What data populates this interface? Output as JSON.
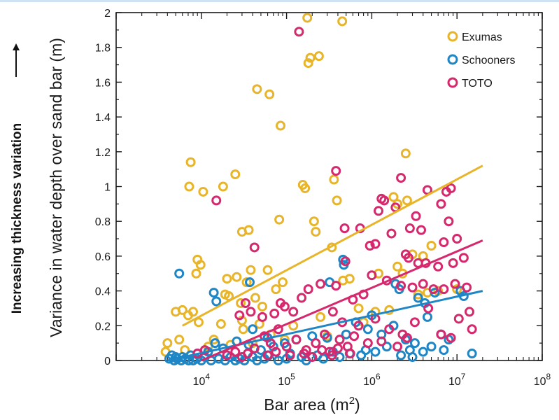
{
  "side_annotation": "Increasing thickness variation",
  "chart_data": {
    "type": "scatter",
    "title": "",
    "xlabel": "Bar area (m²)",
    "xlabel_main": "Bar area (m",
    "xlabel_sup": "2",
    "xlabel_close": ")",
    "ylabel": "Variance in water depth over sand bar (m)",
    "x_scale": "log",
    "xlim": [
      1000,
      100000000
    ],
    "ylim": [
      0,
      2
    ],
    "x_ticks": [
      {
        "value": 10000,
        "base": "10",
        "exp": "4"
      },
      {
        "value": 100000,
        "base": "10",
        "exp": "5"
      },
      {
        "value": 1000000,
        "base": "10",
        "exp": "6"
      },
      {
        "value": 10000000,
        "base": "10",
        "exp": "7"
      },
      {
        "value": 100000000,
        "base": "10",
        "exp": "8"
      }
    ],
    "y_ticks": [
      "0",
      "0.2",
      "0.4",
      "0.6",
      "0.8",
      "1",
      "1.2",
      "1.4",
      "1.6",
      "1.8",
      "2"
    ],
    "y_tick_values": [
      0,
      0.2,
      0.4,
      0.6,
      0.8,
      1.0,
      1.2,
      1.4,
      1.6,
      1.8,
      2.0
    ],
    "grid": false,
    "legend_position": "top-right",
    "marker": "open-circle",
    "series": [
      {
        "name": "Exumas",
        "color": "#e8b52a",
        "trend": {
          "x": [
            6000,
            20000000
          ],
          "y": [
            0.2,
            1.12
          ]
        },
        "points": [
          [
            175000,
            1.97
          ],
          [
            450000,
            1.95
          ],
          [
            190000,
            1.74
          ],
          [
            240000,
            1.75
          ],
          [
            180000,
            1.71
          ],
          [
            45000,
            1.56
          ],
          [
            63000,
            1.53
          ],
          [
            85000,
            1.35
          ],
          [
            2500000,
            1.19
          ],
          [
            7500,
            1.14
          ],
          [
            25000,
            1.07
          ],
          [
            360000,
            1.04
          ],
          [
            7200,
            1.0
          ],
          [
            10500,
            0.97
          ],
          [
            18000,
            1.0
          ],
          [
            155000,
            1.01
          ],
          [
            165000,
            0.99
          ],
          [
            1800000,
            0.94
          ],
          [
            2000000,
            0.9
          ],
          [
            2600000,
            0.92
          ],
          [
            390000,
            0.92
          ],
          [
            82000,
            0.81
          ],
          [
            210000,
            0.8
          ],
          [
            220000,
            0.74
          ],
          [
            30000,
            0.74
          ],
          [
            36000,
            0.75
          ],
          [
            340000,
            0.65
          ],
          [
            3000000,
            0.61
          ],
          [
            4000000,
            0.6
          ],
          [
            5000000,
            0.66
          ],
          [
            9000,
            0.58
          ],
          [
            9800,
            0.55
          ],
          [
            8700,
            0.5
          ],
          [
            60000,
            0.52
          ],
          [
            38000,
            0.52
          ],
          [
            26000,
            0.48
          ],
          [
            20000,
            0.47
          ],
          [
            34000,
            0.45
          ],
          [
            75000,
            0.41
          ],
          [
            43000,
            0.36
          ],
          [
            19000,
            0.38
          ],
          [
            21000,
            0.37
          ],
          [
            29000,
            0.33
          ],
          [
            90000,
            0.45
          ],
          [
            6000,
            0.29
          ],
          [
            5000,
            0.28
          ],
          [
            8000,
            0.28
          ],
          [
            7000,
            0.26
          ],
          [
            9300,
            0.22
          ],
          [
            17000,
            0.21
          ],
          [
            48000,
            0.21
          ],
          [
            52000,
            0.31
          ],
          [
            30000,
            0.23
          ],
          [
            2000000,
            0.54
          ],
          [
            1600000,
            0.29
          ],
          [
            460000,
            0.46
          ],
          [
            550000,
            0.47
          ],
          [
            1100000,
            0.28
          ],
          [
            3500000,
            0.38
          ],
          [
            4500000,
            0.39
          ],
          [
            6000000,
            0.4
          ],
          [
            10000000,
            0.41
          ],
          [
            4000,
            0.1
          ],
          [
            5500,
            0.12
          ],
          [
            12000,
            0.08
          ],
          [
            22000,
            0.09
          ],
          [
            31000,
            0.18
          ],
          [
            65000,
            0.15
          ],
          [
            120000,
            0.2
          ],
          [
            250000,
            0.25
          ],
          [
            700000,
            0.3
          ],
          [
            1200000,
            0.5
          ],
          [
            2300000,
            0.5
          ],
          [
            3800,
            0.05
          ],
          [
            6400,
            0.06
          ],
          [
            14000,
            0.12
          ],
          [
            40000,
            0.1
          ],
          [
            95000,
            0.12
          ],
          [
            300000,
            0.14
          ],
          [
            800000,
            0.22
          ]
        ]
      },
      {
        "name": "Schooners",
        "color": "#1f86c6",
        "trend": {
          "x": [
            4000,
            20000000
          ],
          "y": [
            0.0,
            0.4
          ]
        },
        "points": [
          [
            5500,
            0.5
          ],
          [
            14000,
            0.39
          ],
          [
            15000,
            0.34
          ],
          [
            37000,
            0.45
          ],
          [
            320000,
            0.45
          ],
          [
            460000,
            0.58
          ],
          [
            470000,
            0.55
          ],
          [
            1900000,
            0.44
          ],
          [
            2100000,
            0.41
          ],
          [
            3500000,
            0.36
          ],
          [
            4200000,
            0.33
          ],
          [
            5500000,
            0.39
          ],
          [
            11000000,
            0.4
          ],
          [
            12000000,
            0.37
          ],
          [
            1000000,
            0.26
          ],
          [
            650000,
            0.22
          ],
          [
            900000,
            0.18
          ],
          [
            500000,
            0.15
          ],
          [
            300000,
            0.13
          ],
          [
            200000,
            0.14
          ],
          [
            1300000,
            0.15
          ],
          [
            1800000,
            0.2
          ],
          [
            2500000,
            0.12
          ],
          [
            3200000,
            0.1
          ],
          [
            4500000,
            0.25
          ],
          [
            6500000,
            0.15
          ],
          [
            8000000,
            0.12
          ],
          [
            15000000,
            0.04
          ],
          [
            130000,
            0.12
          ],
          [
            95000,
            0.1
          ],
          [
            70000,
            0.08
          ],
          [
            50000,
            0.06
          ],
          [
            36000,
            0.09
          ],
          [
            26000,
            0.11
          ],
          [
            18000,
            0.07
          ],
          [
            14500,
            0.1
          ],
          [
            12000,
            0.05
          ],
          [
            9000,
            0.04
          ],
          [
            7500,
            0.03
          ],
          [
            6000,
            0.02
          ],
          [
            5000,
            0.02
          ],
          [
            4200,
            0.01
          ],
          [
            4500,
            0.03
          ],
          [
            4800,
            0.0
          ],
          [
            5200,
            0.01
          ],
          [
            5800,
            0.0
          ],
          [
            6500,
            0.01
          ],
          [
            7100,
            0.0
          ],
          [
            8000,
            0.0
          ],
          [
            8800,
            0.01
          ],
          [
            10000,
            0.0
          ],
          [
            11000,
            0.02
          ],
          [
            13000,
            0.0
          ],
          [
            16000,
            0.01
          ],
          [
            19000,
            0.0
          ],
          [
            22000,
            0.02
          ],
          [
            25000,
            0.0
          ],
          [
            28000,
            0.01
          ],
          [
            32000,
            0.0
          ],
          [
            40000,
            0.02
          ],
          [
            45000,
            0.0
          ],
          [
            55000,
            0.01
          ],
          [
            62000,
            0.03
          ],
          [
            80000,
            0.0
          ],
          [
            100000,
            0.01
          ],
          [
            110000,
            0.04
          ],
          [
            150000,
            0.02
          ],
          [
            170000,
            0.0
          ],
          [
            230000,
            0.03
          ],
          [
            270000,
            0.01
          ],
          [
            350000,
            0.05
          ],
          [
            420000,
            0.02
          ],
          [
            550000,
            0.04
          ],
          [
            750000,
            0.03
          ],
          [
            850000,
            0.06
          ],
          [
            1100000,
            0.05
          ],
          [
            1500000,
            0.08
          ],
          [
            2200000,
            0.03
          ],
          [
            2800000,
            0.06
          ],
          [
            4000000,
            0.05
          ],
          [
            5000000,
            0.08
          ],
          [
            7000000,
            0.06
          ],
          [
            3000000,
            0.02
          ],
          [
            60000,
            0.13
          ],
          [
            40000,
            0.18
          ]
        ]
      },
      {
        "name": "TOTO",
        "color": "#d6286d",
        "trend": {
          "x": [
            10000,
            20000000
          ],
          "y": [
            0.0,
            0.69
          ]
        },
        "points": [
          [
            140000,
            1.89
          ],
          [
            15000,
            0.92
          ],
          [
            380000,
            1.09
          ],
          [
            2200000,
            1.05
          ],
          [
            1300000,
            0.93
          ],
          [
            1400000,
            0.92
          ],
          [
            1900000,
            0.88
          ],
          [
            1200000,
            0.86
          ],
          [
            4500000,
            0.98
          ],
          [
            7500000,
            0.97
          ],
          [
            8500000,
            0.99
          ],
          [
            6500000,
            0.9
          ],
          [
            480000,
            0.76
          ],
          [
            730000,
            0.76
          ],
          [
            1700000,
            0.73
          ],
          [
            2800000,
            0.76
          ],
          [
            3800000,
            0.75
          ],
          [
            8000000,
            0.8
          ],
          [
            3300000,
            0.83
          ],
          [
            42000,
            0.65
          ],
          [
            950000,
            0.66
          ],
          [
            1100000,
            0.67
          ],
          [
            2500000,
            0.61
          ],
          [
            7000000,
            0.68
          ],
          [
            10000000,
            0.7
          ],
          [
            2700000,
            0.59
          ],
          [
            3500000,
            0.56
          ],
          [
            4300000,
            0.56
          ],
          [
            6000000,
            0.54
          ],
          [
            9000000,
            0.56
          ],
          [
            12000000,
            0.59
          ],
          [
            490000,
            0.57
          ],
          [
            1000000,
            0.49
          ],
          [
            1500000,
            0.46
          ],
          [
            2200000,
            0.43
          ],
          [
            3000000,
            0.42
          ],
          [
            4000000,
            0.44
          ],
          [
            5300000,
            0.41
          ],
          [
            7000000,
            0.41
          ],
          [
            9500000,
            0.44
          ],
          [
            13000000,
            0.42
          ],
          [
            14000000,
            0.28
          ],
          [
            800000,
            0.38
          ],
          [
            600000,
            0.35
          ],
          [
            380000,
            0.43
          ],
          [
            250000,
            0.44
          ],
          [
            180000,
            0.41
          ],
          [
            150000,
            0.36
          ],
          [
            120000,
            0.28
          ],
          [
            95000,
            0.31
          ],
          [
            85000,
            0.33
          ],
          [
            72000,
            0.27
          ],
          [
            52000,
            0.25
          ],
          [
            38000,
            0.28
          ],
          [
            33000,
            0.33
          ],
          [
            28000,
            0.26
          ],
          [
            350000,
            0.28
          ],
          [
            450000,
            0.22
          ],
          [
            700000,
            0.2
          ],
          [
            1100000,
            0.24
          ],
          [
            1600000,
            0.18
          ],
          [
            2300000,
            0.15
          ],
          [
            3200000,
            0.22
          ],
          [
            4600000,
            0.3
          ],
          [
            6500000,
            0.15
          ],
          [
            8500000,
            0.13
          ],
          [
            10500000,
            0.24
          ],
          [
            15000000,
            0.18
          ],
          [
            55000,
            0.14
          ],
          [
            65000,
            0.1
          ],
          [
            80000,
            0.18
          ],
          [
            100000,
            0.08
          ],
          [
            130000,
            0.12
          ],
          [
            170000,
            0.06
          ],
          [
            220000,
            0.1
          ],
          [
            280000,
            0.15
          ],
          [
            320000,
            0.05
          ],
          [
            420000,
            0.12
          ],
          [
            520000,
            0.08
          ],
          [
            620000,
            0.14
          ],
          [
            900000,
            0.1
          ],
          [
            1300000,
            0.11
          ],
          [
            2000000,
            0.08
          ],
          [
            2600000,
            0.13
          ],
          [
            42000,
            0.07
          ],
          [
            35000,
            0.04
          ],
          [
            30000,
            0.02
          ],
          [
            25000,
            0.05
          ],
          [
            60000,
            0.03
          ],
          [
            75000,
            0.05
          ],
          [
            110000,
            0.03
          ],
          [
            160000,
            0.04
          ],
          [
            200000,
            0.02
          ],
          [
            260000,
            0.06
          ],
          [
            340000,
            0.03
          ],
          [
            400000,
            0.07
          ],
          [
            560000,
            0.04
          ],
          [
            11000,
            0.06
          ],
          [
            9000,
            0.04
          ],
          [
            20000,
            0.03
          ]
        ]
      }
    ]
  }
}
